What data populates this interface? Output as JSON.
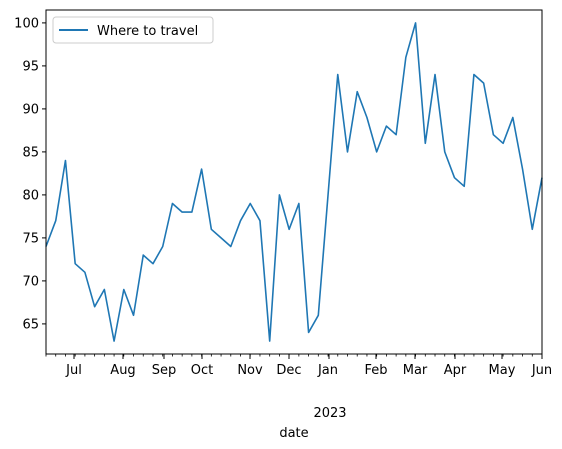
{
  "chart_data": {
    "type": "line",
    "xlabel": "date",
    "x_tick_labels": [
      "Jul",
      "Aug",
      "Sep",
      "Oct",
      "Nov",
      "Dec",
      "Jan",
      "Feb",
      "Mar",
      "Apr",
      "May",
      "Jun"
    ],
    "x_year_label": "2023",
    "ylim": [
      61.5,
      101.5
    ],
    "y_ticks": [
      65,
      70,
      75,
      80,
      85,
      90,
      95,
      100
    ],
    "grid": false,
    "legend_position": "top-left",
    "series": [
      {
        "name": "Where to travel",
        "color": "#1f77b4",
        "values": [
          74,
          77,
          84,
          72,
          71,
          67,
          69,
          63,
          69,
          66,
          73,
          72,
          74,
          79,
          78,
          78,
          83,
          76,
          75,
          74,
          77,
          79,
          77,
          63,
          80,
          76,
          79,
          64,
          66,
          80,
          94,
          85,
          92,
          89,
          85,
          88,
          87,
          96,
          100,
          86,
          94,
          85,
          82,
          81,
          94,
          93,
          87,
          86,
          89,
          83,
          76,
          82
        ]
      }
    ]
  }
}
